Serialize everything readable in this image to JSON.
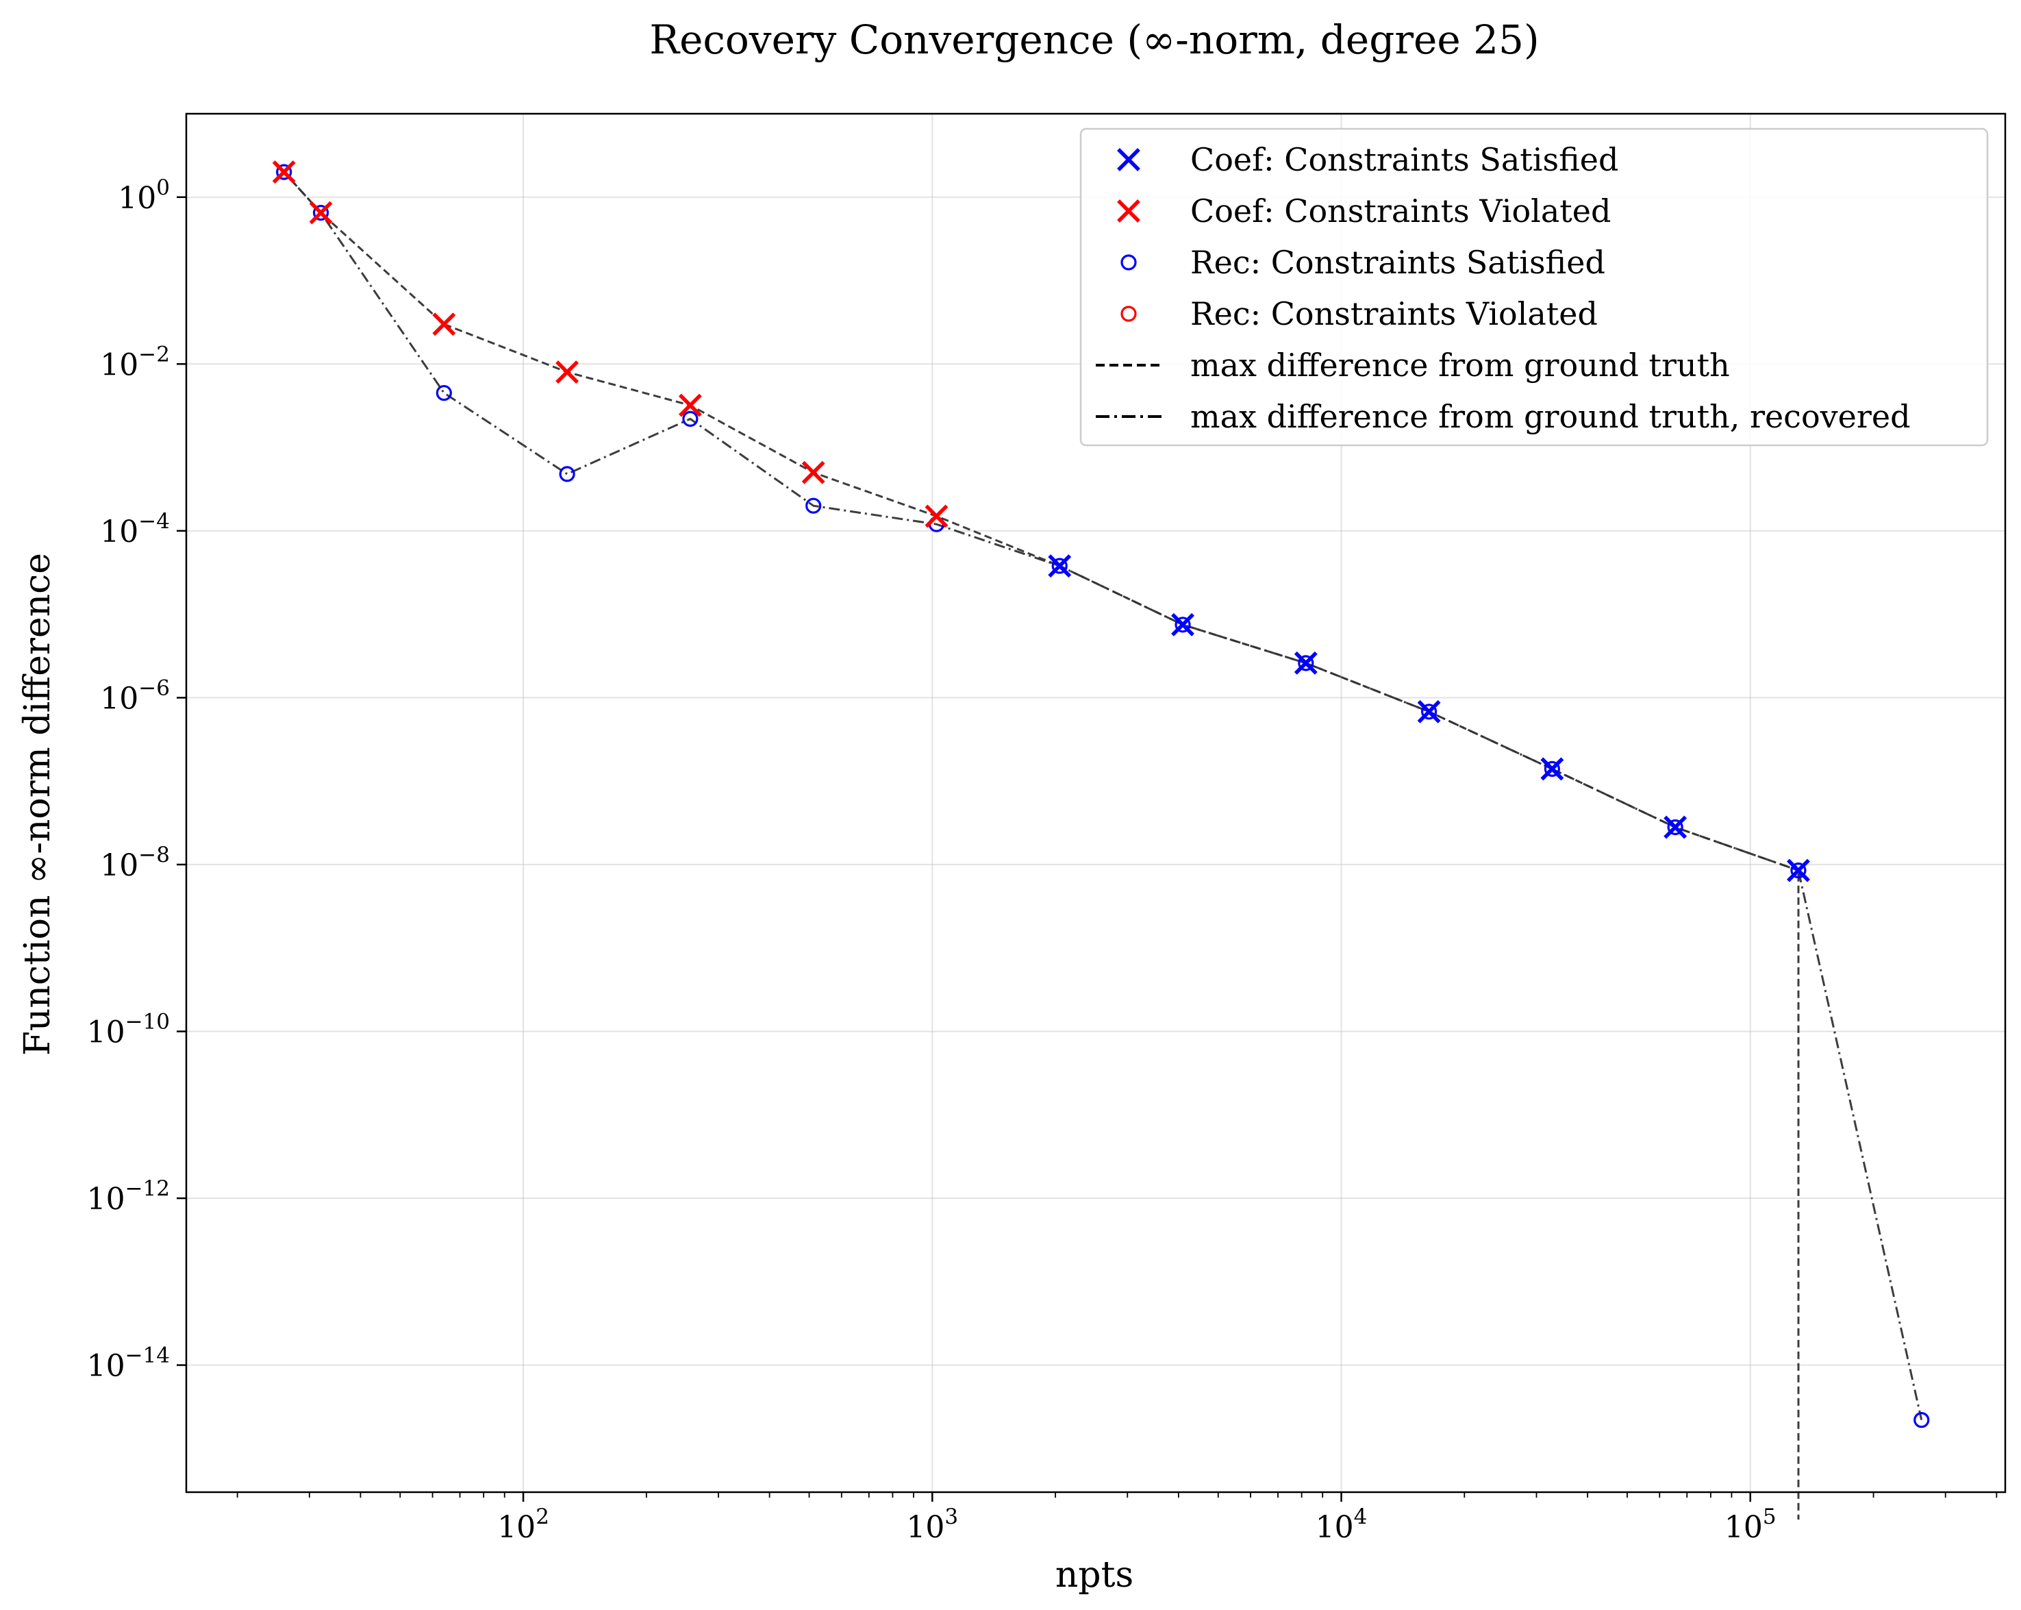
{
  "chart_data": {
    "type": "line",
    "title": "Recovery Convergence (∞-norm, degree 25)",
    "xlabel": "npts",
    "ylabel": "Function ∞-norm difference",
    "x_scale": "log",
    "y_scale": "log",
    "xlim": [
      15,
      420000
    ],
    "ylim": [
      3e-16,
      10
    ],
    "grid": true,
    "legend_position": "top-right",
    "x_ticks": [
      {
        "value": 100,
        "base": "10",
        "exp": "2"
      },
      {
        "value": 1000,
        "base": "10",
        "exp": "3"
      },
      {
        "value": 10000,
        "base": "10",
        "exp": "4"
      },
      {
        "value": 100000,
        "base": "10",
        "exp": "5"
      }
    ],
    "y_ticks": [
      {
        "value": 1,
        "base": "10",
        "exp": "0"
      },
      {
        "value": 0.01,
        "base": "10",
        "exp": "−2"
      },
      {
        "value": 0.0001,
        "base": "10",
        "exp": "−4"
      },
      {
        "value": 1e-06,
        "base": "10",
        "exp": "−6"
      },
      {
        "value": 1e-08,
        "base": "10",
        "exp": "−8"
      },
      {
        "value": 1e-10,
        "base": "10",
        "exp": "−10"
      },
      {
        "value": 1e-12,
        "base": "10",
        "exp": "−12"
      },
      {
        "value": 1e-14,
        "base": "10",
        "exp": "−14"
      }
    ],
    "x": [
      26,
      32,
      64,
      128,
      256,
      512,
      1024,
      2048,
      4096,
      8192,
      16384,
      32768,
      65536,
      131072,
      262144
    ],
    "series": [
      {
        "name": "max difference from ground truth",
        "style": "dashed",
        "values": [
          2.0,
          0.65,
          0.03,
          0.008,
          0.0032,
          0.0005,
          0.00015,
          3.8e-05,
          7.5e-06,
          2.6e-06,
          6.8e-07,
          1.4e-07,
          2.8e-08,
          8.5e-09,
          null
        ],
        "constraint_status": [
          "violated",
          "violated",
          "violated",
          "violated",
          "violated",
          "violated",
          "violated",
          "satisfied",
          "satisfied",
          "satisfied",
          "satisfied",
          "satisfied",
          "satisfied",
          "satisfied",
          null
        ],
        "drops_to_zero_after_last": true
      },
      {
        "name": "max difference from ground truth, recovered",
        "style": "dashdot",
        "values": [
          2.0,
          0.65,
          0.0045,
          0.00048,
          0.0022,
          0.0002,
          0.00012,
          3.8e-05,
          7.5e-06,
          2.6e-06,
          6.8e-07,
          1.4e-07,
          2.8e-08,
          8.5e-09,
          2.2e-15
        ],
        "constraint_status": [
          "satisfied",
          "satisfied",
          "satisfied",
          "satisfied",
          "satisfied",
          "satisfied",
          "satisfied",
          "satisfied",
          "satisfied",
          "satisfied",
          "satisfied",
          "satisfied",
          "satisfied",
          "satisfied",
          "satisfied"
        ]
      }
    ],
    "legend": [
      {
        "label": "Coef: Constraints Satisfied",
        "marker": "x",
        "color": "#0000ff"
      },
      {
        "label": "Coef: Constraints Violated",
        "marker": "x",
        "color": "#ff0000"
      },
      {
        "label": "Rec: Constraints Satisfied",
        "marker": "o",
        "color": "#0000ff"
      },
      {
        "label": "Rec: Constraints Violated",
        "marker": "o",
        "color": "#ff0000"
      },
      {
        "label": "max difference from ground truth",
        "line": "dashed",
        "color": "#000000"
      },
      {
        "label": "max difference from ground truth, recovered",
        "line": "dashdot",
        "color": "#000000"
      }
    ],
    "colors": {
      "satisfied": "#0000ff",
      "violated": "#ff0000",
      "line": "#333333"
    }
  }
}
